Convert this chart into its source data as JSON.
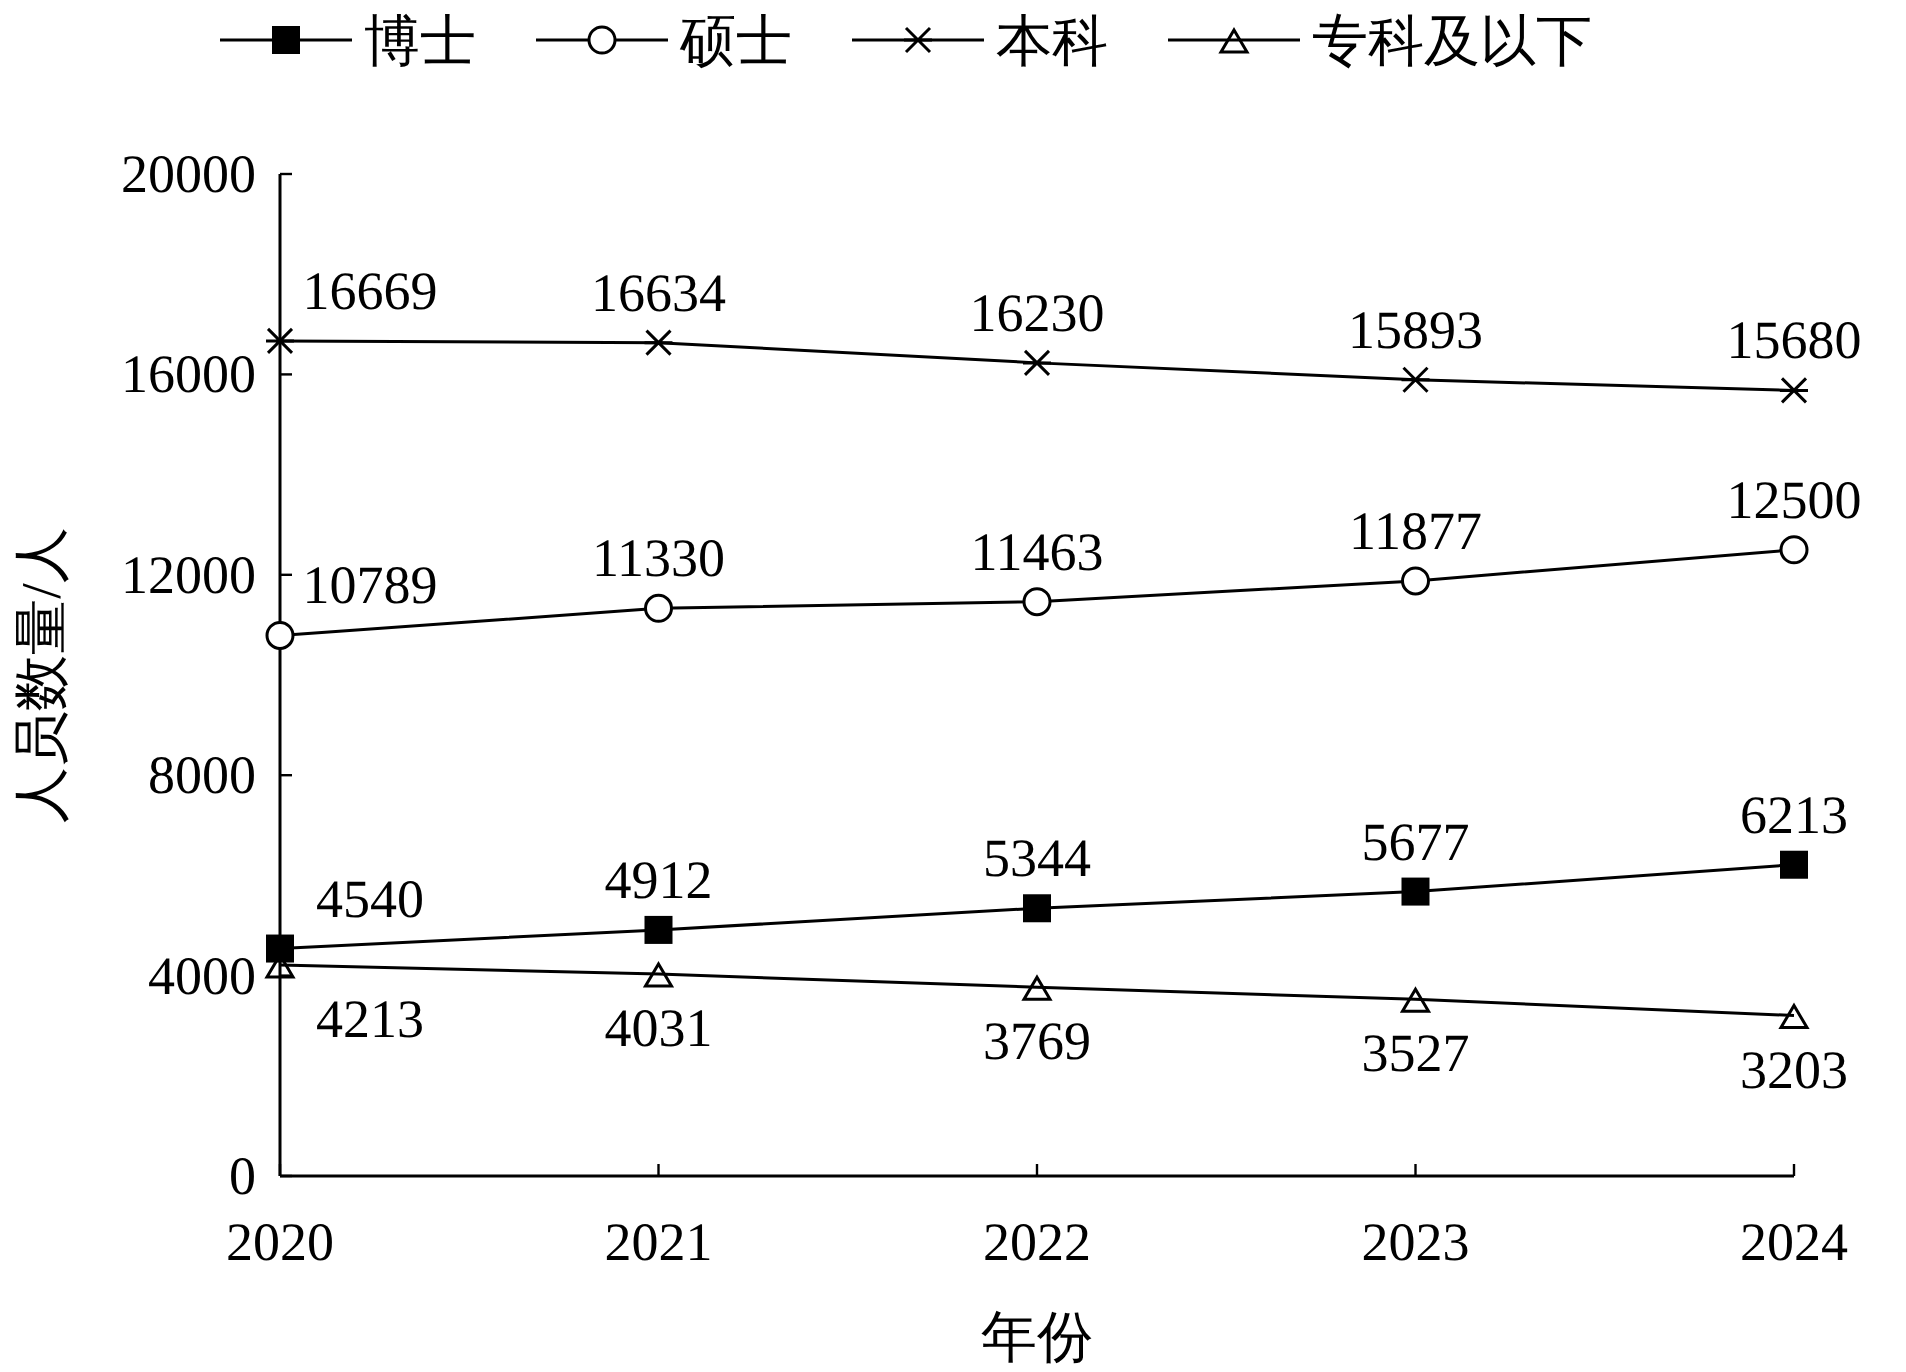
{
  "chart_data": {
    "type": "line",
    "xlabel": "年份",
    "ylabel": "人员数量/人",
    "categories": [
      "2020",
      "2021",
      "2022",
      "2023",
      "2024"
    ],
    "series": [
      {
        "name": "博士",
        "color": "#000000",
        "marker": "square",
        "values": [
          4540,
          4912,
          5344,
          5677,
          6213
        ]
      },
      {
        "name": "硕士",
        "color": "#000000",
        "marker": "circle",
        "values": [
          10789,
          11330,
          11463,
          11877,
          12500
        ]
      },
      {
        "name": "本科",
        "color": "#000000",
        "marker": "cross",
        "values": [
          16669,
          16634,
          16230,
          15893,
          15680
        ]
      },
      {
        "name": "专科及以下",
        "color": "#000000",
        "marker": "triangle",
        "values": [
          4213,
          4031,
          3769,
          3527,
          3203
        ]
      }
    ],
    "ylim": [
      0,
      20000
    ],
    "yticks": [
      0,
      4000,
      8000,
      12000,
      16000,
      20000
    ],
    "data_labels": true,
    "legend": "top",
    "grid": false,
    "line_style": "solid"
  }
}
